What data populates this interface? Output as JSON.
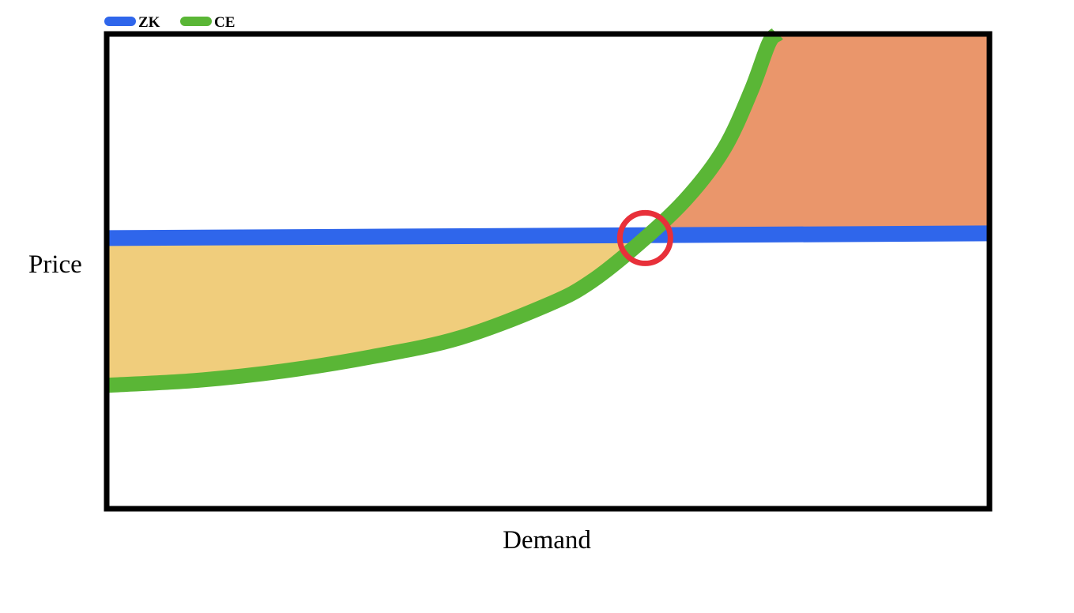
{
  "chart_data": {
    "type": "line",
    "title": "",
    "xlabel": "Demand",
    "ylabel": "Price",
    "xlim": [
      0,
      100
    ],
    "ylim": [
      0,
      100
    ],
    "grid": false,
    "legend_position": "top-left",
    "series": [
      {
        "name": "ZK",
        "color": "#2f66eb",
        "x": [
          0,
          100
        ],
        "y": [
          57,
          58
        ]
      },
      {
        "name": "CE",
        "color": "#5ab636",
        "x": [
          0,
          10,
          20,
          30,
          40,
          50,
          55,
          61,
          66,
          70,
          73,
          75,
          76
        ],
        "y": [
          26,
          27,
          29,
          32,
          36,
          43,
          48,
          57,
          66,
          76,
          88,
          98,
          100
        ]
      }
    ],
    "shaded_regions": [
      {
        "name": "below-zk-above-ce",
        "color": "#f0cd7c",
        "between": [
          "ZK",
          "CE"
        ],
        "x_range": [
          0,
          61
        ]
      },
      {
        "name": "above-zk-below-ce",
        "color": "#ea966b",
        "between": [
          "ZK",
          "CE"
        ],
        "x_range": [
          61,
          100
        ]
      }
    ],
    "annotations": [
      {
        "name": "intersection-marker",
        "shape": "circle",
        "color": "#e8303a",
        "x": 61,
        "y": 57
      }
    ]
  }
}
